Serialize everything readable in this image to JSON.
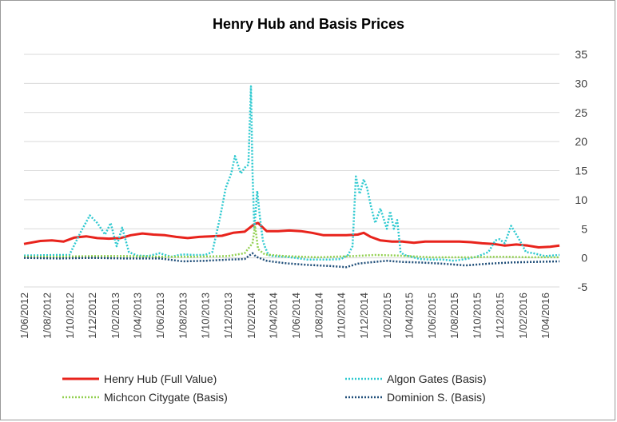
{
  "chart_data": {
    "type": "line",
    "title": "Henry Hub and Basis Prices",
    "xlabel": "",
    "ylabel": "",
    "ylim": [
      -5,
      35
    ],
    "yticks": [
      -5,
      0,
      5,
      10,
      15,
      20,
      25,
      30,
      35
    ],
    "xticks": [
      "1/06/2012",
      "1/08/2012",
      "1/10/2012",
      "1/12/2012",
      "1/02/2013",
      "1/04/2013",
      "1/06/2013",
      "1/08/2013",
      "1/10/2013",
      "1/12/2013",
      "1/02/2014",
      "1/04/2014",
      "1/06/2014",
      "1/08/2014",
      "1/10/2014",
      "1/12/2014",
      "1/02/2015",
      "1/04/2015",
      "1/06/2015",
      "1/08/2015",
      "1/10/2015",
      "1/12/2015",
      "1/02/2016",
      "1/04/2016"
    ],
    "x_range": [
      "2012-06-01",
      "2016-05-10"
    ],
    "grid": "horizontal",
    "legend_position": "bottom",
    "series": [
      {
        "name": "Henry Hub (Full Value)",
        "color": "#e8231c",
        "style": "solid",
        "x": [
          "2012-06-01",
          "2012-07-15",
          "2012-08-15",
          "2012-09-15",
          "2012-10-15",
          "2012-11-15",
          "2012-12-15",
          "2013-01-15",
          "2013-02-15",
          "2013-03-15",
          "2013-04-15",
          "2013-05-15",
          "2013-06-15",
          "2013-07-15",
          "2013-08-15",
          "2013-09-15",
          "2013-10-15",
          "2013-11-15",
          "2013-12-15",
          "2014-01-15",
          "2014-02-10",
          "2014-02-20",
          "2014-03-15",
          "2014-04-15",
          "2014-05-15",
          "2014-06-15",
          "2014-07-15",
          "2014-08-15",
          "2014-09-15",
          "2014-10-15",
          "2014-11-15",
          "2014-12-01",
          "2014-12-20",
          "2015-01-15",
          "2015-02-15",
          "2015-03-15",
          "2015-04-15",
          "2015-05-15",
          "2015-06-15",
          "2015-07-15",
          "2015-08-15",
          "2015-09-15",
          "2015-10-15",
          "2015-11-15",
          "2015-12-15",
          "2016-01-15",
          "2016-02-15",
          "2016-03-15",
          "2016-04-15",
          "2016-05-10"
        ],
        "y": [
          2.4,
          2.9,
          3.0,
          2.8,
          3.5,
          3.7,
          3.4,
          3.3,
          3.4,
          3.9,
          4.2,
          4.0,
          3.9,
          3.6,
          3.4,
          3.6,
          3.7,
          3.8,
          4.3,
          4.5,
          5.8,
          6.0,
          4.6,
          4.6,
          4.7,
          4.6,
          4.3,
          3.9,
          3.9,
          3.9,
          4.0,
          4.3,
          3.6,
          3.0,
          2.8,
          2.8,
          2.6,
          2.8,
          2.8,
          2.8,
          2.8,
          2.7,
          2.5,
          2.4,
          2.1,
          2.3,
          2.1,
          1.8,
          1.9,
          2.1
        ]
      },
      {
        "name": "Algon Gates (Basis)",
        "color": "#2ec9d0",
        "style": "dotted",
        "x": [
          "2012-06-01",
          "2012-09-01",
          "2012-10-01",
          "2012-11-01",
          "2012-11-25",
          "2012-12-15",
          "2013-01-05",
          "2013-01-20",
          "2013-02-05",
          "2013-02-20",
          "2013-03-10",
          "2013-04-01",
          "2013-05-01",
          "2013-06-01",
          "2013-07-01",
          "2013-08-01",
          "2013-09-01",
          "2013-10-01",
          "2013-10-20",
          "2013-11-10",
          "2013-11-25",
          "2013-12-10",
          "2013-12-20",
          "2014-01-05",
          "2014-01-15",
          "2014-01-25",
          "2014-02-01",
          "2014-02-05",
          "2014-02-10",
          "2014-02-18",
          "2014-02-25",
          "2014-03-05",
          "2014-03-10",
          "2014-03-20",
          "2014-04-01",
          "2014-05-01",
          "2014-06-01",
          "2014-07-01",
          "2014-08-01",
          "2014-09-01",
          "2014-10-01",
          "2014-10-20",
          "2014-11-01",
          "2014-11-10",
          "2014-11-20",
          "2014-12-01",
          "2014-12-10",
          "2014-12-20",
          "2015-01-01",
          "2015-01-15",
          "2015-02-01",
          "2015-02-10",
          "2015-02-20",
          "2015-03-01",
          "2015-03-10",
          "2015-03-20",
          "2015-04-01",
          "2015-05-01",
          "2015-06-01",
          "2015-07-01",
          "2015-08-01",
          "2015-09-01",
          "2015-10-01",
          "2015-11-01",
          "2015-11-20",
          "2015-12-01",
          "2015-12-15",
          "2016-01-01",
          "2016-01-20",
          "2016-02-10",
          "2016-03-01",
          "2016-04-01",
          "2016-05-10"
        ],
        "y": [
          0.4,
          0.5,
          0.5,
          4.5,
          7.3,
          6.0,
          4.0,
          6.0,
          2.0,
          5.2,
          1.0,
          0.4,
          0.3,
          0.8,
          0.2,
          0.6,
          0.5,
          0.5,
          1.0,
          7.0,
          12.0,
          14.5,
          17.5,
          14.5,
          15.5,
          16.0,
          29.5,
          15.0,
          5.0,
          11.5,
          7.0,
          3.0,
          2.0,
          0.5,
          0.3,
          0.2,
          0.0,
          -0.3,
          -0.3,
          -0.3,
          -0.2,
          0.5,
          2.0,
          14.0,
          11.0,
          13.5,
          12.0,
          9.0,
          6.0,
          8.5,
          5.0,
          8.0,
          5.0,
          6.5,
          1.0,
          0.5,
          0.3,
          -0.2,
          -0.3,
          -0.3,
          -0.5,
          -0.2,
          0.2,
          1.0,
          3.0,
          3.2,
          2.5,
          5.5,
          3.5,
          1.0,
          0.8,
          0.3,
          0.5
        ]
      },
      {
        "name": "Michcon Citygate (Basis)",
        "color": "#92d050",
        "style": "dotted",
        "x": [
          "2012-06-01",
          "2012-09-01",
          "2012-12-01",
          "2013-03-01",
          "2013-06-01",
          "2013-09-01",
          "2013-12-01",
          "2014-01-15",
          "2014-02-05",
          "2014-02-12",
          "2014-02-20",
          "2014-03-10",
          "2014-05-01",
          "2014-08-01",
          "2014-11-01",
          "2015-01-01",
          "2015-03-01",
          "2015-06-01",
          "2015-09-01",
          "2015-12-01",
          "2016-03-01",
          "2016-05-10"
        ],
        "y": [
          0.2,
          0.2,
          0.3,
          0.3,
          0.2,
          0.2,
          0.3,
          0.8,
          2.5,
          5.5,
          1.5,
          0.6,
          0.3,
          0.1,
          0.3,
          0.5,
          0.4,
          0.1,
          0.1,
          0.2,
          0.1,
          0.1
        ]
      },
      {
        "name": "Dominion S. (Basis)",
        "color": "#1f4e79",
        "style": "dotted",
        "x": [
          "2012-06-01",
          "2012-09-01",
          "2012-12-01",
          "2013-03-01",
          "2013-06-01",
          "2013-08-01",
          "2013-10-01",
          "2013-12-01",
          "2014-01-15",
          "2014-02-05",
          "2014-02-15",
          "2014-03-15",
          "2014-05-01",
          "2014-07-01",
          "2014-09-01",
          "2014-10-15",
          "2014-11-15",
          "2014-12-15",
          "2015-02-01",
          "2015-03-15",
          "2015-05-01",
          "2015-07-01",
          "2015-09-01",
          "2015-11-01",
          "2016-01-01",
          "2016-03-01",
          "2016-05-10"
        ],
        "y": [
          0.0,
          -0.1,
          0.0,
          -0.1,
          -0.1,
          -0.6,
          -0.5,
          -0.3,
          -0.2,
          0.8,
          0.2,
          -0.5,
          -0.9,
          -1.2,
          -1.4,
          -1.6,
          -1.0,
          -0.8,
          -0.5,
          -0.7,
          -0.8,
          -1.0,
          -1.3,
          -1.0,
          -0.8,
          -0.7,
          -0.6
        ]
      }
    ]
  }
}
